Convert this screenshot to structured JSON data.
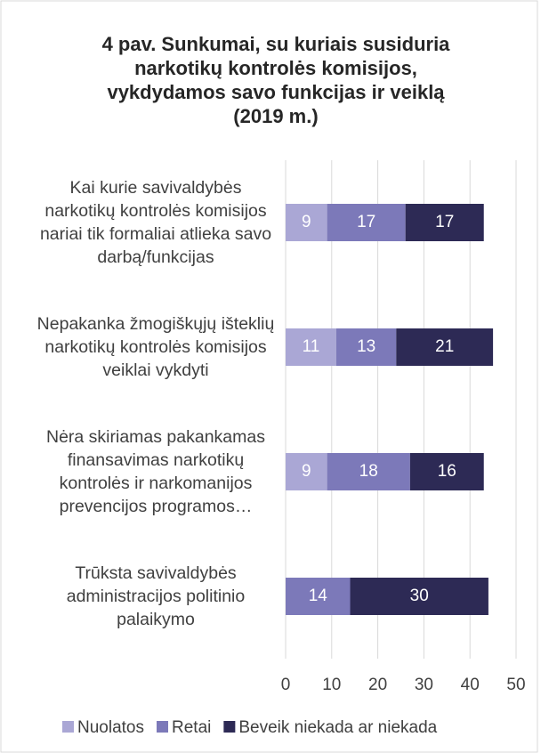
{
  "chart_data": {
    "type": "stacked_barh",
    "title": "4 pav. Sunkumai, su kuriais susiduria narkotikų kontrolės komisijos, vykdydamos savo funkcijas ir veiklą (2019 m.)",
    "categories": [
      "Kai kurie savivaldybės narkotikų kontrolės komisijos nariai tik formaliai atlieka savo darbą/funkcijas",
      "Nepakanka žmogiškųjų išteklių narkotikų kontrolės komisijos veiklai vykdyti",
      "Nėra skiriamas pakankamas finansavimas narkotikų kontrolės ir narkomanijos prevencijos programos…",
      "Trūksta savivaldybės administracijos politinio palaikymo"
    ],
    "series": [
      {
        "name": "Nuolatos",
        "color": "#aaa7d5",
        "values": [
          9,
          11,
          9,
          0
        ]
      },
      {
        "name": "Retai",
        "color": "#7c79b9",
        "values": [
          17,
          13,
          18,
          14
        ]
      },
      {
        "name": "Beveik niekada ar niekada",
        "color": "#2d2a55",
        "values": [
          17,
          21,
          16,
          30
        ]
      }
    ],
    "xlim": [
      0,
      50
    ],
    "xticks": [
      0,
      10,
      20,
      30,
      40,
      50
    ],
    "grid": true,
    "legend": "bottom"
  }
}
